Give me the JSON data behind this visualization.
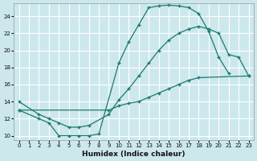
{
  "xlabel": "Humidex (Indice chaleur)",
  "bg_color": "#cce8ec",
  "line_color": "#1a7a6e",
  "grid_color": "#ffffff",
  "xlim": [
    -0.5,
    23.5
  ],
  "ylim": [
    9.5,
    25.5
  ],
  "xticks": [
    0,
    1,
    2,
    3,
    4,
    5,
    6,
    7,
    8,
    9,
    10,
    11,
    12,
    13,
    14,
    15,
    16,
    17,
    18,
    19,
    20,
    21,
    22,
    23
  ],
  "yticks": [
    10,
    12,
    14,
    16,
    18,
    20,
    22,
    24
  ],
  "line1_x": [
    0,
    2,
    3,
    4,
    5,
    6,
    7,
    8,
    10,
    11,
    12,
    13,
    14,
    15,
    16,
    17,
    18,
    19,
    20,
    21
  ],
  "line1_y": [
    13.0,
    12.0,
    11.5,
    10.0,
    10.0,
    10.0,
    10.0,
    10.2,
    18.5,
    21.0,
    23.0,
    25.0,
    25.2,
    25.3,
    25.2,
    25.0,
    24.3,
    22.2,
    19.2,
    17.3
  ],
  "line2_x": [
    0,
    2,
    3,
    4,
    5,
    6,
    7,
    9,
    10,
    11,
    12,
    13,
    14,
    15,
    16,
    17,
    18,
    19,
    20,
    21,
    22,
    23
  ],
  "line2_y": [
    14.0,
    12.5,
    12.0,
    11.5,
    11.0,
    11.0,
    11.2,
    12.5,
    14.2,
    15.5,
    17.0,
    18.5,
    20.0,
    21.2,
    22.0,
    22.5,
    22.8,
    22.5,
    22.0,
    19.5,
    19.2,
    17.0
  ],
  "line3_x": [
    0,
    9,
    10,
    11,
    12,
    13,
    14,
    15,
    16,
    17,
    18,
    23
  ],
  "line3_y": [
    13.0,
    13.0,
    13.5,
    13.8,
    14.0,
    14.5,
    15.0,
    15.5,
    16.0,
    16.5,
    16.8,
    17.0
  ]
}
